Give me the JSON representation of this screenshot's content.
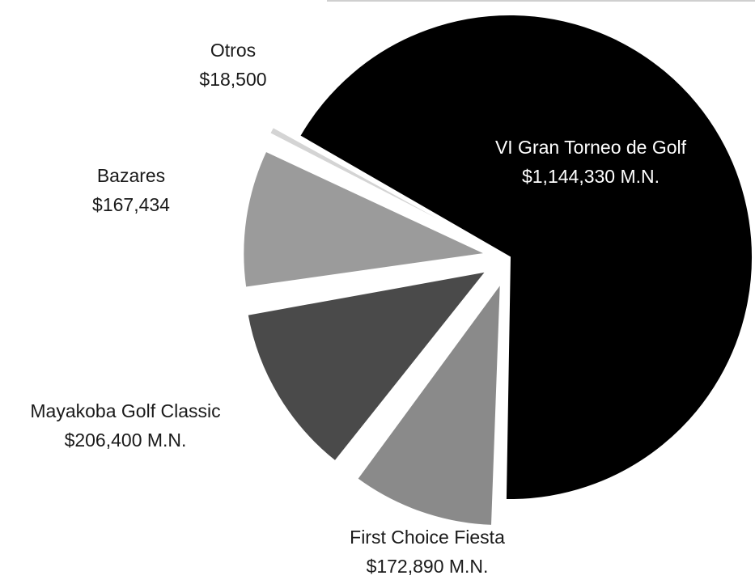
{
  "chart_data": {
    "type": "pie",
    "title": "",
    "slices": [
      {
        "label": "VI Gran Torneo de Golf",
        "value": 1144330,
        "value_label": "$1,144,330 M.N.",
        "color": "#000000",
        "text_color": "#ffffff"
      },
      {
        "label": "First Choice Fiesta",
        "value": 172890,
        "value_label": "$172,890 M.N.",
        "color": "#8a8a8a",
        "text_color": "#1a1a1a"
      },
      {
        "label": "Mayakoba Golf Classic",
        "value": 206400,
        "value_label": "$206,400 M.N.",
        "color": "#4a4a4a",
        "text_color": "#1a1a1a"
      },
      {
        "label": "Bazares",
        "value": 167434,
        "value_label": "$167,434",
        "color": "#9b9b9b",
        "text_color": "#1a1a1a"
      },
      {
        "label": "Otros",
        "value": 18500,
        "value_label": "$18,500",
        "color": "#d4d4d4",
        "text_color": "#1a1a1a"
      }
    ]
  }
}
